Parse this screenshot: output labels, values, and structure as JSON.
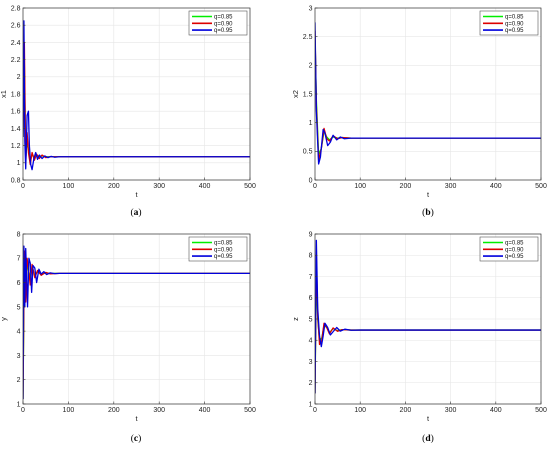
{
  "chart_data": [
    {
      "type": "line",
      "caption": "(a)",
      "caption_letter": "a",
      "xlabel": "t",
      "ylabel": "x1",
      "xlim": [
        0,
        500
      ],
      "ylim": [
        0.8,
        2.8
      ],
      "xticks": [
        0,
        100,
        200,
        300,
        400,
        500
      ],
      "yticks": [
        0.8,
        1,
        1.2,
        1.4,
        1.6,
        1.8,
        2,
        2.2,
        2.4,
        2.6,
        2.8
      ],
      "legend_position": "top-right",
      "grid": true,
      "series": [
        {
          "name": "q=0.85",
          "color": "#00ee00",
          "x": [
            0,
            3,
            6,
            9,
            12,
            16,
            20,
            25,
            30,
            36,
            42,
            50,
            60,
            80,
            100,
            500
          ],
          "y": [
            1.3,
            2.15,
            1.05,
            1.25,
            1.15,
            1.02,
            1.1,
            1.06,
            1.09,
            1.07,
            1.08,
            1.07,
            1.07,
            1.07,
            1.07,
            1.07
          ]
        },
        {
          "name": "q=0.90",
          "color": "#dd0000",
          "x": [
            0,
            3,
            6,
            9,
            12,
            16,
            20,
            25,
            30,
            36,
            42,
            50,
            60,
            80,
            100,
            500
          ],
          "y": [
            1.3,
            2.4,
            1.0,
            1.35,
            1.12,
            0.98,
            1.12,
            1.03,
            1.1,
            1.05,
            1.09,
            1.06,
            1.07,
            1.07,
            1.07,
            1.07
          ]
        },
        {
          "name": "q=0.95",
          "color": "#0000dd",
          "x": [
            0,
            2,
            4,
            6,
            9,
            12,
            14,
            17,
            20,
            24,
            28,
            32,
            36,
            42,
            48,
            55,
            62,
            70,
            80,
            100,
            500
          ],
          "y": [
            1.3,
            2.65,
            1.25,
            0.93,
            1.55,
            1.6,
            1.2,
            0.98,
            0.92,
            1.05,
            1.12,
            1.04,
            1.09,
            1.05,
            1.08,
            1.06,
            1.075,
            1.065,
            1.07,
            1.07,
            1.07
          ]
        }
      ]
    },
    {
      "type": "line",
      "caption": "(b)",
      "caption_letter": "b",
      "xlabel": "t",
      "ylabel": "x2",
      "xlim": [
        0,
        500
      ],
      "ylim": [
        0,
        3
      ],
      "xticks": [
        0,
        100,
        200,
        300,
        400,
        500
      ],
      "yticks": [
        0,
        0.5,
        1,
        1.5,
        2,
        2.5,
        3
      ],
      "legend_position": "top-right",
      "grid": true,
      "series": [
        {
          "name": "q=0.85",
          "color": "#00ee00",
          "x": [
            0,
            3,
            8,
            14,
            20,
            26,
            32,
            40,
            50,
            60,
            80,
            100,
            500
          ],
          "y": [
            2.5,
            1.4,
            0.45,
            0.55,
            0.85,
            0.75,
            0.7,
            0.75,
            0.73,
            0.74,
            0.73,
            0.73,
            0.73
          ]
        },
        {
          "name": "q=0.90",
          "color": "#dd0000",
          "x": [
            0,
            3,
            8,
            14,
            20,
            26,
            32,
            40,
            50,
            60,
            80,
            100,
            500
          ],
          "y": [
            2.6,
            1.3,
            0.35,
            0.55,
            0.9,
            0.72,
            0.68,
            0.77,
            0.72,
            0.74,
            0.73,
            0.73,
            0.73
          ]
        },
        {
          "name": "q=0.95",
          "color": "#0000dd",
          "x": [
            0,
            3,
            8,
            12,
            18,
            22,
            28,
            34,
            40,
            48,
            56,
            65,
            80,
            100,
            500
          ],
          "y": [
            2.75,
            1.2,
            0.28,
            0.4,
            0.88,
            0.82,
            0.6,
            0.66,
            0.78,
            0.7,
            0.75,
            0.72,
            0.73,
            0.73,
            0.73
          ]
        }
      ]
    },
    {
      "type": "line",
      "caption": "(c)",
      "caption_letter": "c",
      "xlabel": "t",
      "ylabel": "y",
      "xlim": [
        0,
        500
      ],
      "ylim": [
        1,
        8
      ],
      "xticks": [
        0,
        100,
        200,
        300,
        400,
        500
      ],
      "yticks": [
        1,
        2,
        3,
        4,
        5,
        6,
        7,
        8
      ],
      "legend_position": "top-right",
      "grid": true,
      "series": [
        {
          "name": "q=0.85",
          "color": "#00ee00",
          "x": [
            0,
            3,
            6,
            9,
            12,
            16,
            20,
            26,
            32,
            40,
            50,
            60,
            80,
            100,
            500
          ],
          "y": [
            1.2,
            7.0,
            5.5,
            6.8,
            6.5,
            6.2,
            6.6,
            6.3,
            6.45,
            6.35,
            6.4,
            6.38,
            6.38,
            6.38,
            6.38
          ]
        },
        {
          "name": "q=0.90",
          "color": "#dd0000",
          "x": [
            0,
            3,
            6,
            9,
            12,
            16,
            20,
            26,
            32,
            40,
            50,
            60,
            80,
            100,
            500
          ],
          "y": [
            1.2,
            7.3,
            5.2,
            7.0,
            6.6,
            5.9,
            6.75,
            6.2,
            6.5,
            6.3,
            6.42,
            6.36,
            6.38,
            6.38,
            6.38
          ]
        },
        {
          "name": "q=0.95",
          "color": "#0000dd",
          "x": [
            0,
            2,
            4,
            6,
            8,
            10,
            13,
            16,
            19,
            22,
            26,
            30,
            35,
            40,
            46,
            52,
            60,
            70,
            80,
            100,
            500
          ],
          "y": [
            1.2,
            7.5,
            5.0,
            7.4,
            6.2,
            5.0,
            7.0,
            6.8,
            5.6,
            6.7,
            6.6,
            6.0,
            6.55,
            6.35,
            6.45,
            6.33,
            6.4,
            6.37,
            6.38,
            6.38,
            6.38
          ]
        }
      ]
    },
    {
      "type": "line",
      "caption": "(d)",
      "caption_letter": "d",
      "xlabel": "t",
      "ylabel": "z",
      "xlim": [
        0,
        500
      ],
      "ylim": [
        1,
        9
      ],
      "xticks": [
        0,
        100,
        200,
        300,
        400,
        500
      ],
      "yticks": [
        1,
        2,
        3,
        4,
        5,
        6,
        7,
        8,
        9
      ],
      "legend_position": "top-right",
      "grid": true,
      "series": [
        {
          "name": "q=0.85",
          "color": "#00ee00",
          "x": [
            0,
            3,
            6,
            10,
            15,
            20,
            26,
            32,
            40,
            50,
            60,
            80,
            100,
            500
          ],
          "y": [
            1.5,
            7.2,
            5.0,
            4.0,
            4.1,
            4.7,
            4.6,
            4.35,
            4.55,
            4.45,
            4.5,
            4.48,
            4.48,
            4.48
          ]
        },
        {
          "name": "q=0.90",
          "color": "#dd0000",
          "x": [
            0,
            3,
            6,
            10,
            15,
            20,
            26,
            32,
            40,
            50,
            60,
            80,
            100,
            500
          ],
          "y": [
            1.5,
            8.0,
            5.2,
            3.8,
            4.0,
            4.8,
            4.6,
            4.3,
            4.58,
            4.42,
            4.5,
            4.48,
            4.48,
            4.48
          ]
        },
        {
          "name": "q=0.95",
          "color": "#0000dd",
          "x": [
            0,
            3,
            6,
            10,
            14,
            18,
            22,
            28,
            34,
            40,
            48,
            56,
            66,
            80,
            100,
            500
          ],
          "y": [
            1.5,
            8.7,
            5.5,
            4.2,
            3.7,
            4.2,
            4.8,
            4.6,
            4.25,
            4.4,
            4.6,
            4.43,
            4.52,
            4.47,
            4.48,
            4.48
          ]
        }
      ]
    }
  ]
}
